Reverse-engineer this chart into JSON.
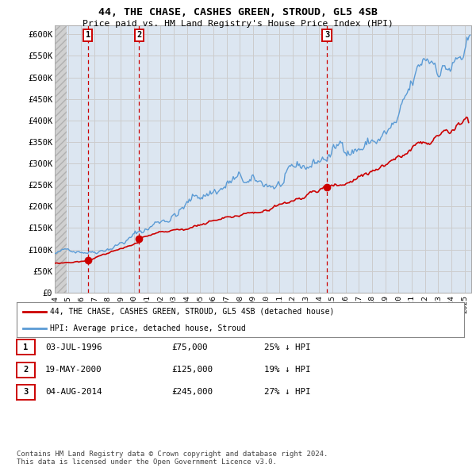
{
  "title": "44, THE CHASE, CASHES GREEN, STROUD, GL5 4SB",
  "subtitle": "Price paid vs. HM Land Registry's House Price Index (HPI)",
  "ylim": [
    0,
    620000
  ],
  "yticks": [
    0,
    50000,
    100000,
    150000,
    200000,
    250000,
    300000,
    350000,
    400000,
    450000,
    500000,
    550000,
    600000
  ],
  "ytick_labels": [
    "£0",
    "£50K",
    "£100K",
    "£150K",
    "£200K",
    "£250K",
    "£300K",
    "£350K",
    "£400K",
    "£450K",
    "£500K",
    "£550K",
    "£600K"
  ],
  "xlim_start": 1994.0,
  "xlim_end": 2025.5,
  "sale_dates": [
    1996.5,
    2000.38,
    2014.59
  ],
  "sale_prices": [
    75000,
    125000,
    245000
  ],
  "sale_labels": [
    "1",
    "2",
    "3"
  ],
  "legend_red_label": "44, THE CHASE, CASHES GREEN, STROUD, GL5 4SB (detached house)",
  "legend_blue_label": "HPI: Average price, detached house, Stroud",
  "table_rows": [
    [
      "1",
      "03-JUL-1996",
      "£75,000",
      "25% ↓ HPI"
    ],
    [
      "2",
      "19-MAY-2000",
      "£125,000",
      "19% ↓ HPI"
    ],
    [
      "3",
      "04-AUG-2014",
      "£245,000",
      "27% ↓ HPI"
    ]
  ],
  "footnote": "Contains HM Land Registry data © Crown copyright and database right 2024.\nThis data is licensed under the Open Government Licence v3.0.",
  "red_color": "#cc0000",
  "blue_color": "#5b9bd5",
  "grid_color": "#cccccc",
  "bg_color": "#dce6f1",
  "hatch_bg": "#e8e8e8"
}
